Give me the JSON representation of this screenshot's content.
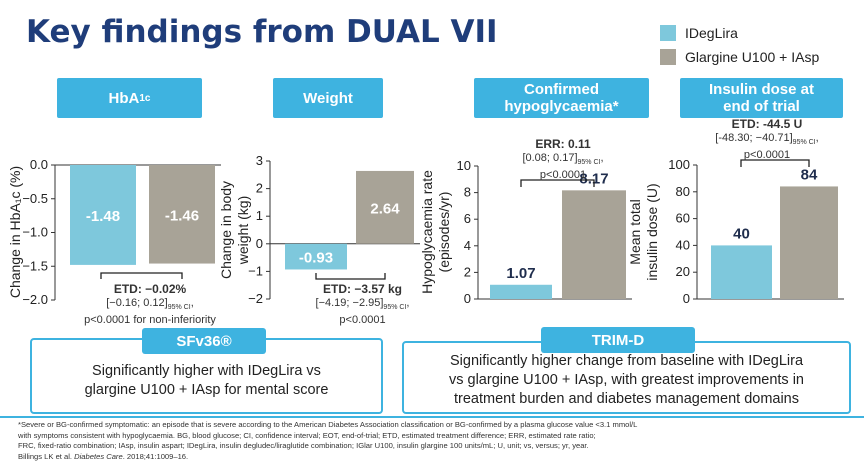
{
  "title": "Key findings from DUAL VII",
  "legend": [
    {
      "name": "IDegLira",
      "color": "#7ec8dc"
    },
    {
      "name": "Glargine U100 + IAsp",
      "color": "#a8a397"
    }
  ],
  "panels": [
    {
      "header": "HbA",
      "header_sub": "1c",
      "etd_bold": "ETD: −0.02%",
      "etd_ci": "[−0.16; 0.12]",
      "etd_ci_sub": "95% CI",
      "etd_tail": ",",
      "etd_p": "p<0.0001 for non-inferiority"
    },
    {
      "header": "Weight",
      "etd_bold": "ETD: −3.57 kg",
      "etd_ci": "[−4.19; −2.95]",
      "etd_ci_sub": "95% CI",
      "etd_tail": ",",
      "etd_p": "p<0.0001"
    },
    {
      "header_line1": "Confirmed",
      "header_line2": "hypoglycaemia*",
      "etd_bold": "ERR: 0.11",
      "etd_ci": "[0.08; 0.17]",
      "etd_ci_sub": "95% CI",
      "etd_tail": ",",
      "etd_p": "p<0.0001"
    },
    {
      "header_line1": "Insulin dose at",
      "header_line2": "end of trial",
      "etd_bold": "ETD: -44.5 U",
      "etd_ci": "[-48.30; −40.71]",
      "etd_ci_sub": "95% CI",
      "etd_tail": ",",
      "etd_p": "p<0.0001"
    }
  ],
  "chart_data": [
    {
      "type": "bar",
      "categories": [
        "IDegLira",
        "Glargine U100 + IAsp"
      ],
      "values": [
        -1.48,
        -1.46
      ],
      "value_labels": [
        "-1.48",
        "-1.46"
      ],
      "ylabel": "Change in HbA1c (%)",
      "ylim": [
        -2.0,
        0.0
      ],
      "yticks": [
        0.0,
        -0.5,
        -1.0,
        -1.5,
        -2.0
      ],
      "ytick_labels": [
        "0.0",
        "−0.5",
        "−1.0",
        "−1.5",
        "−2.0"
      ]
    },
    {
      "type": "bar",
      "categories": [
        "IDegLira",
        "Glargine U100 + IAsp"
      ],
      "values": [
        -0.93,
        2.64
      ],
      "value_labels": [
        "-0.93",
        "2.64"
      ],
      "ylabel": "Change in body weight (kg)",
      "ylim": [
        -2,
        3
      ],
      "yticks": [
        3,
        2,
        1,
        0,
        -1,
        -2
      ],
      "ytick_labels": [
        "3",
        "2",
        "1",
        "0",
        "−1",
        "−2"
      ]
    },
    {
      "type": "bar",
      "categories": [
        "IDegLira",
        "Glargine U100 + IAsp"
      ],
      "values": [
        1.07,
        8.17
      ],
      "value_labels": [
        "1.07",
        "8.17"
      ],
      "ylabel": "Hypoglycaemia rate (episodes/yr)",
      "ylim": [
        0,
        10
      ],
      "yticks": [
        10,
        8,
        6,
        4,
        2,
        0
      ],
      "ytick_labels": [
        "10",
        "8",
        "6",
        "4",
        "2",
        "0"
      ]
    },
    {
      "type": "bar",
      "categories": [
        "IDegLira",
        "Glargine U100 + IAsp"
      ],
      "values": [
        40,
        84
      ],
      "value_labels": [
        "40",
        "84"
      ],
      "ylabel": "Mean total insulin dose (U)",
      "ylim": [
        0,
        100
      ],
      "yticks": [
        100,
        80,
        60,
        40,
        20,
        0
      ],
      "ytick_labels": [
        "100",
        "80",
        "60",
        "40",
        "20",
        "0"
      ]
    }
  ],
  "sfv36": {
    "header": "SFv36®",
    "text_line1": "Significantly higher with IDegLira vs",
    "text_line2": "glargine U100 + IAsp for mental score"
  },
  "trimd": {
    "header": "TRIM-D",
    "text_line1": "Significantly higher change from baseline with IDegLira",
    "text_line2": "vs glargine U100 + IAsp, with greatest improvements in",
    "text_line3": "treatment burden and diabetes management domains"
  },
  "footnote": {
    "line1": "*Severe or BG-confirmed symptomatic: an episode that is severe according to the American Diabetes Association classification or BG-confirmed by a plasma glucose value <3.1 mmol/L",
    "line2": "with symptoms consistent with hypoglycaemia. BG, blood glucose; CI, confidence interval; EOT, end-of-trial; ETD, estimated treatment difference; ERR, estimated rate ratio;",
    "line3": "FRC, fixed-ratio combination; IAsp, insulin aspart; IDegLira, insulin degludec/liraglutide combination; IGlar U100, insulin glargine 100 units/mL; U, unit; vs, versus; yr, year.",
    "line4_a": "Billings LK et al. ",
    "line4_journal": "Diabetes Care",
    "line4_b": ". 2018;41:1009–16."
  }
}
